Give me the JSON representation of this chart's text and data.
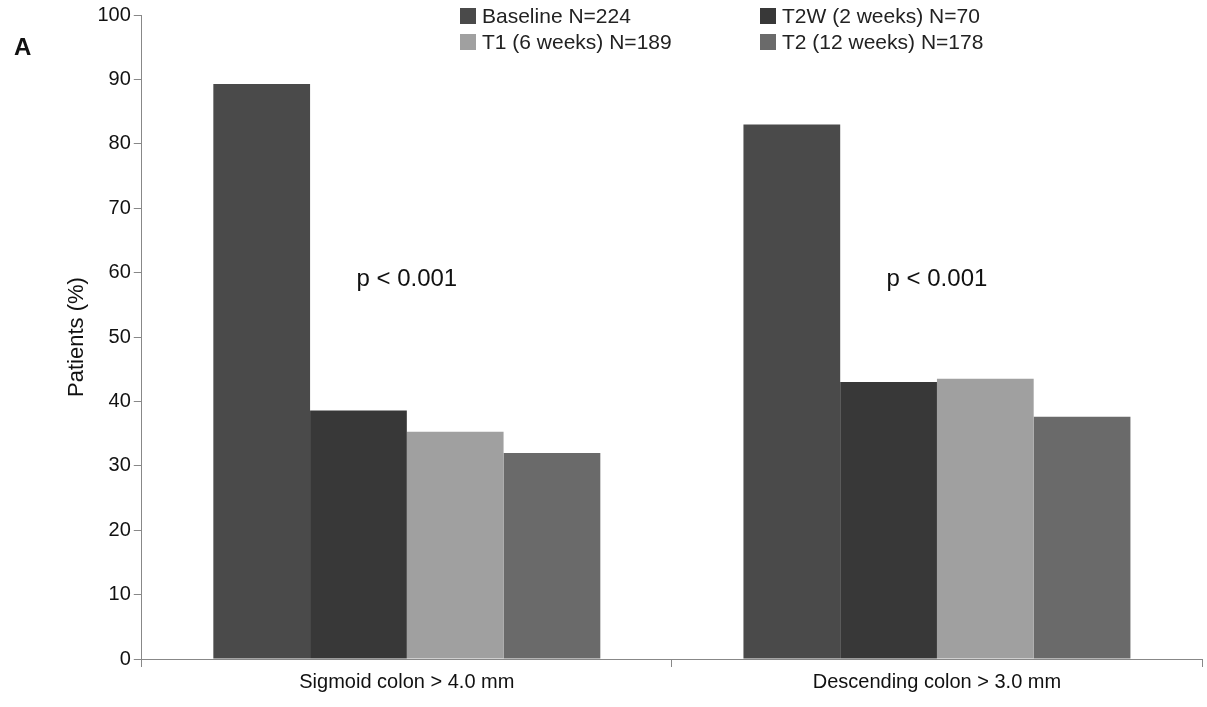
{
  "chart_data": {
    "type": "bar",
    "ylabel": "Patients (%)",
    "categories": [
      "Sigmoid colon > 4.0 mm",
      "Descending colon > 3.0 mm"
    ],
    "series": [
      {
        "name": "Baseline N=224",
        "color": "#4a4a4a",
        "values": [
          89.3,
          83.0
        ]
      },
      {
        "name": "T2W (2 weeks) N=70",
        "color": "#383838",
        "values": [
          38.6,
          43.0
        ]
      },
      {
        "name": "T1 (6 weeks) N=189",
        "color": "#a0a0a0",
        "values": [
          35.3,
          43.5
        ]
      },
      {
        "name": "T2 (12 weeks) N=178",
        "color": "#6a6a6a",
        "values": [
          32.0,
          37.6
        ]
      }
    ],
    "ylim": [
      0,
      100
    ],
    "yticks": [
      0,
      10,
      20,
      30,
      40,
      50,
      60,
      70,
      80,
      90,
      100
    ],
    "grid": false,
    "legend": "top",
    "annotations": [
      "A",
      "p < 0.001",
      "p < 0.001"
    ]
  }
}
